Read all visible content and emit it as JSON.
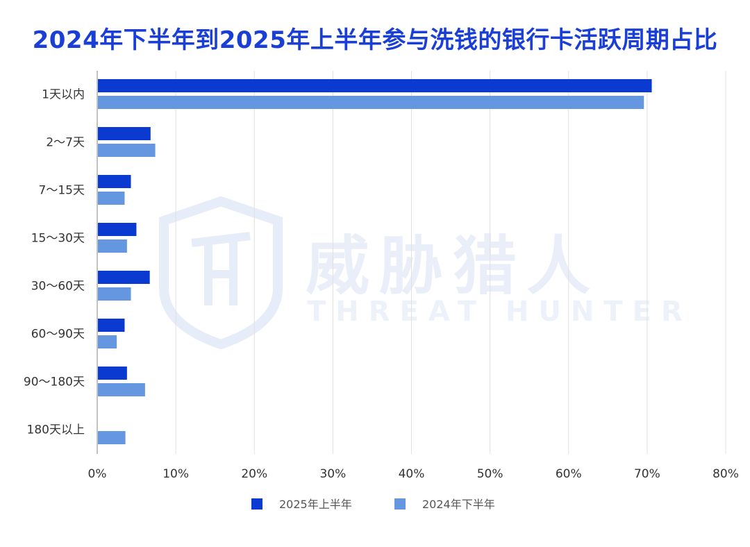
{
  "watermark": {
    "name_cn": "威胁猎人",
    "name_en": "THREAT HUNTER"
  },
  "chart_data": {
    "type": "bar",
    "orientation": "horizontal",
    "title": "2024年下半年到2025年上半年参与洗钱的银行卡活跃周期占比",
    "categories": [
      "1天以内",
      "2～7天",
      "7～15天",
      "15～30天",
      "30～60天",
      "60～90天",
      "90～180天",
      "180天以上"
    ],
    "series": [
      {
        "name": "2025年上半年",
        "color": "#0a3ad0",
        "values": [
          70.5,
          6.7,
          4.2,
          4.9,
          6.6,
          3.4,
          3.7,
          0
        ]
      },
      {
        "name": "2024年下半年",
        "color": "#6497e0",
        "values": [
          69.5,
          7.3,
          3.4,
          3.7,
          4.2,
          2.4,
          6.0,
          3.5
        ]
      }
    ],
    "xlim": [
      0,
      80
    ],
    "xticks": [
      "0%",
      "10%",
      "20%",
      "30%",
      "40%",
      "50%",
      "60%",
      "70%",
      "80%"
    ],
    "xtick_values": [
      0,
      10,
      20,
      30,
      40,
      50,
      60,
      70,
      80
    ],
    "grid": true,
    "legend_position": "bottom"
  }
}
